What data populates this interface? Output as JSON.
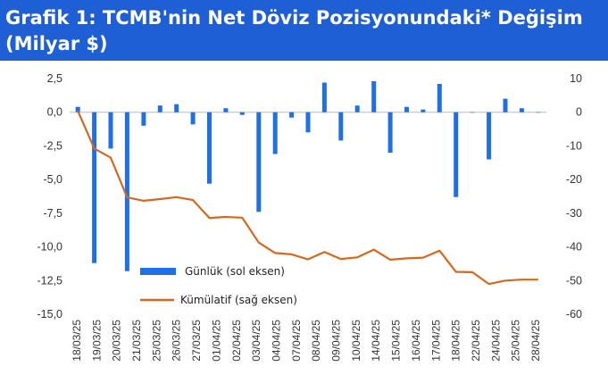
{
  "header": {
    "title_line1": "Grafik 1: TCMB'nin Net Döviz Pozisyonundaki* Değişim",
    "title_line2": "(Milyar $)"
  },
  "colors": {
    "bar": "#1f6fe8",
    "line": "#d2691e",
    "header_bg": "#1f5fd6"
  },
  "chart_data": {
    "type": "bar",
    "categories": [
      "18/03/25",
      "19/03/25",
      "20/03/25",
      "21/03/25",
      "24/03/25",
      "25/03/25",
      "26/03/25",
      "27/03/25",
      "01/04/25",
      "02/04/25",
      "03/04/25",
      "04/04/25",
      "07/04/25",
      "08/04/25",
      "09/04/25",
      "10/04/25",
      "11/04/25",
      "14/04/25",
      "15/04/25",
      "16/04/25",
      "17/04/25",
      "18/04/25",
      "21/04/25",
      "22/04/25",
      "23/04/25",
      "24/04/25",
      "25/04/25",
      "28/04/25",
      "29/04/25"
    ],
    "x_tick_labels": [
      "18/03/25",
      "19/03/25",
      "20/03/25",
      "21/03/25",
      "25/03/25",
      "26/03/25",
      "27/03/25",
      "01/04/25",
      "02/04/25",
      "03/04/25",
      "04/04/25",
      "07/04/25",
      "08/04/25",
      "09/04/25",
      "10/04/25",
      "14/04/25",
      "15/04/25",
      "16/04/25",
      "17/04/25",
      "18/04/25",
      "22/04/25",
      "24/04/25",
      "25/04/25",
      "28/04/25"
    ],
    "series": [
      {
        "name": "Günlük (sol eksen)",
        "type": "bar",
        "axis": "left",
        "values": [
          0.4,
          -11.2,
          -2.7,
          -11.8,
          -1.0,
          0.5,
          0.6,
          -0.9,
          -5.3,
          0.3,
          -0.2,
          -7.4,
          -3.1,
          -0.4,
          -1.5,
          2.2,
          -2.1,
          0.5,
          2.3,
          -3.0,
          0.4,
          0.2,
          2.1,
          -6.3,
          0.0,
          -3.5,
          1.0,
          0.3,
          0.0
        ]
      },
      {
        "name": "Kümülatif (sağ eksen)",
        "type": "line",
        "axis": "right",
        "values": [
          0.4,
          -10.8,
          -13.5,
          -25.3,
          -26.3,
          -25.8,
          -25.2,
          -26.1,
          -31.4,
          -31.1,
          -31.3,
          -38.7,
          -41.8,
          -42.2,
          -43.7,
          -41.5,
          -43.6,
          -43.1,
          -40.8,
          -43.8,
          -43.4,
          -43.2,
          -41.1,
          -47.4,
          -47.5,
          -51.0,
          -50.0,
          -49.7,
          -49.7
        ]
      }
    ],
    "y_left": {
      "ylim": [
        -15,
        2.5
      ],
      "ticks": [
        "2,5",
        "0,0",
        "-2,5",
        "-5,0",
        "-7,5",
        "-10,0",
        "-12,5",
        "-15,0"
      ]
    },
    "y_right": {
      "ylim": [
        -60,
        10
      ],
      "ticks": [
        "10",
        "0",
        "-10",
        "-20",
        "-30",
        "-40",
        "-50",
        "-60"
      ]
    },
    "legend_position": "bottom-center"
  }
}
